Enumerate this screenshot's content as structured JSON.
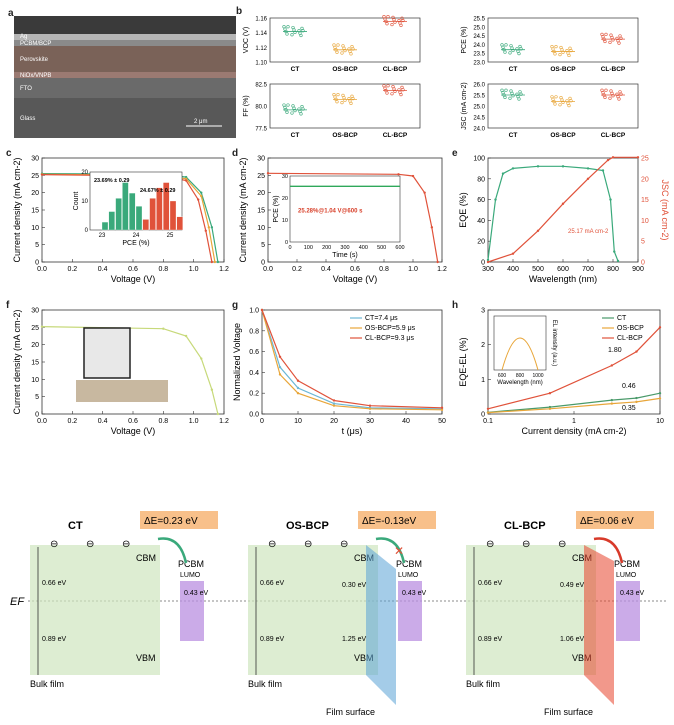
{
  "figure_letters": [
    "a",
    "b",
    "c",
    "d",
    "e",
    "f",
    "g",
    "h"
  ],
  "sem": {
    "layers": [
      "Ag",
      "PCBM/BCP",
      "Perovskite",
      "NiOx/VNPB",
      "FTO",
      "Glass"
    ],
    "scale_bar": "2 μm"
  },
  "panel_b": {
    "categories": [
      "CT",
      "OS-BCP",
      "CL-BCP"
    ],
    "voc": {
      "ylabel": "VOC (V)",
      "ticks": [
        "1.16",
        "1.14",
        "1.12",
        "1.10"
      ],
      "ylim": [
        1.1,
        1.165
      ],
      "medians": [
        1.145,
        1.118,
        1.16
      ]
    },
    "pce": {
      "ylabel": "PCE (%)",
      "ticks": [
        "25.5",
        "25.0",
        "24.5",
        "24.0",
        "23.5",
        "23.0"
      ],
      "ylim": [
        23.0,
        25.5
      ],
      "medians": [
        23.7,
        23.6,
        24.3
      ]
    },
    "ff": {
      "ylabel": "FF (%)",
      "ticks": [
        "82.5",
        "80.0",
        "77.5"
      ],
      "ylim": [
        76.5,
        84.5
      ],
      "medians": [
        79.8,
        81.7,
        83.3
      ]
    },
    "jsc": {
      "ylabel": "JSC (mA cm-2)",
      "ticks": [
        "26.0",
        "25.5",
        "25.0",
        "24.5",
        "24.0"
      ],
      "ylim": [
        24.0,
        26.0
      ],
      "medians": [
        25.5,
        25.2,
        25.5
      ]
    }
  },
  "chart_data": [
    {
      "panel": "c",
      "type": "line",
      "xlabel": "Voltage (V)",
      "ylabel": "Current density (mA cm-2)",
      "xlim": [
        0,
        1.2
      ],
      "ylim": [
        0,
        30
      ],
      "xticks": [
        "0.0",
        "0.2",
        "0.4",
        "0.6",
        "0.8",
        "1.0",
        "1.2"
      ],
      "yticks": [
        "0",
        "5",
        "10",
        "15",
        "20",
        "25",
        "30"
      ],
      "series": [
        {
          "values": [
            [
              0,
              25.5
            ],
            [
              0.8,
              25.3
            ],
            [
              0.95,
              24.5
            ],
            [
              1.05,
              20
            ],
            [
              1.12,
              10
            ],
            [
              1.16,
              0
            ]
          ]
        },
        {
          "values": [
            [
              0,
              25.3
            ],
            [
              0.8,
              25
            ],
            [
              0.95,
              24
            ],
            [
              1.05,
              19
            ],
            [
              1.1,
              10
            ],
            [
              1.14,
              0
            ]
          ]
        },
        {
          "values": [
            [
              0,
              25.2
            ],
            [
              0.8,
              24.8
            ],
            [
              0.95,
              23.5
            ],
            [
              1.03,
              18
            ],
            [
              1.08,
              9
            ],
            [
              1.12,
              0
            ]
          ]
        }
      ],
      "inset": {
        "type": "bar",
        "xlabel": "PCE (%)",
        "ylabel": "Count",
        "xticks": [
          "23",
          "24",
          "25"
        ],
        "yticks": [
          "0",
          "10",
          "20"
        ],
        "annotations": [
          "23.69% ± 0.29",
          "24.67% ± 0.29"
        ],
        "series": [
          {
            "x": [
              23.0,
              23.2,
              23.4,
              23.6,
              23.8,
              24.0,
              24.2
            ],
            "values": [
              3,
              7,
              12,
              18,
              14,
              9,
              4
            ]
          },
          {
            "x": [
              24.2,
              24.4,
              24.6,
              24.8,
              25.0,
              25.2
            ],
            "values": [
              4,
              12,
              16,
              18,
              11,
              5
            ]
          }
        ]
      }
    },
    {
      "panel": "d",
      "type": "line",
      "xlabel": "Voltage (V)",
      "ylabel": "Current density (mA cm-2)",
      "xlim": [
        0,
        1.2
      ],
      "ylim": [
        0,
        30
      ],
      "xticks": [
        "0.0",
        "0.2",
        "0.4",
        "0.6",
        "0.8",
        "1.0",
        "1.2"
      ],
      "yticks": [
        "0",
        "5",
        "10",
        "15",
        "20",
        "25",
        "30"
      ],
      "series": [
        {
          "values": [
            [
              0,
              25.6
            ],
            [
              0.9,
              25.3
            ],
            [
              1.0,
              24.8
            ],
            [
              1.08,
              20
            ],
            [
              1.13,
              10
            ],
            [
              1.17,
              0
            ]
          ]
        }
      ],
      "inset": {
        "type": "line",
        "xlabel": "Time (s)",
        "ylabel": "PCE (%)",
        "xticks": [
          "0",
          "100",
          "200",
          "300",
          "400",
          "500",
          "600"
        ],
        "yticks": [
          "0",
          "10",
          "20",
          "30"
        ],
        "annotation": "25.28%@1.04 V@600 s",
        "values": [
          [
            0,
            25.3
          ],
          [
            600,
            25.3
          ]
        ]
      }
    },
    {
      "panel": "e",
      "type": "line",
      "xlabel": "Wavelength (nm)",
      "ylabel": "EQE (%)",
      "ylabel2": "JSC (mA cm-2)",
      "xlim": [
        300,
        900
      ],
      "ylim": [
        0,
        100
      ],
      "ylim2": [
        0,
        25
      ],
      "xticks": [
        "300",
        "400",
        "500",
        "600",
        "700",
        "800",
        "900"
      ],
      "yticks": [
        "0",
        "20",
        "40",
        "60",
        "80",
        "100"
      ],
      "yticks2": [
        "0",
        "5",
        "10",
        "15",
        "20",
        "25"
      ],
      "annotation": "25.17 mA cm-2",
      "series": [
        {
          "values": [
            [
              300,
              2
            ],
            [
              330,
              60
            ],
            [
              360,
              85
            ],
            [
              400,
              90
            ],
            [
              500,
              92
            ],
            [
              600,
              92
            ],
            [
              700,
              90
            ],
            [
              760,
              88
            ],
            [
              790,
              60
            ],
            [
              805,
              10
            ],
            [
              820,
              1
            ]
          ]
        },
        {
          "values": [
            [
              300,
              0
            ],
            [
              400,
              2
            ],
            [
              500,
              7.5
            ],
            [
              600,
              14
            ],
            [
              700,
              20
            ],
            [
              780,
              24.5
            ],
            [
              800,
              25.17
            ],
            [
              900,
              25.17
            ]
          ]
        }
      ]
    },
    {
      "panel": "f",
      "type": "line",
      "xlabel": "Voltage (V)",
      "ylabel": "Current density (mA cm-2)",
      "xlim": [
        0,
        1.2
      ],
      "ylim": [
        0,
        30
      ],
      "xticks": [
        "0.0",
        "0.2",
        "0.4",
        "0.6",
        "0.8",
        "1.0",
        "1.2"
      ],
      "yticks": [
        "0",
        "5",
        "10",
        "15",
        "20",
        "25",
        "30"
      ],
      "series": [
        {
          "values": [
            [
              0,
              25.2
            ],
            [
              0.8,
              24.6
            ],
            [
              0.95,
              22.5
            ],
            [
              1.05,
              16
            ],
            [
              1.12,
              7
            ],
            [
              1.16,
              0
            ]
          ]
        }
      ]
    },
    {
      "panel": "g",
      "type": "line",
      "xlabel": "t (μs)",
      "ylabel": "Normalized Voltage",
      "xlim": [
        0,
        50
      ],
      "ylim": [
        0,
        1
      ],
      "xticks": [
        "0",
        "10",
        "20",
        "30",
        "40",
        "50"
      ],
      "yticks": [
        "0.0",
        "0.2",
        "0.4",
        "0.6",
        "0.8",
        "1.0"
      ],
      "series": [
        {
          "name": "CT=7.4 μs",
          "values": [
            [
              0,
              1
            ],
            [
              5,
              0.45
            ],
            [
              10,
              0.25
            ],
            [
              20,
              0.1
            ],
            [
              30,
              0.06
            ],
            [
              50,
              0.05
            ]
          ]
        },
        {
          "name": "OS-BCP=5.9 μs",
          "values": [
            [
              0,
              1
            ],
            [
              5,
              0.38
            ],
            [
              10,
              0.2
            ],
            [
              20,
              0.08
            ],
            [
              30,
              0.05
            ],
            [
              50,
              0.04
            ]
          ]
        },
        {
          "name": "CL-BCP=9.3 μs",
          "values": [
            [
              0,
              1
            ],
            [
              5,
              0.55
            ],
            [
              10,
              0.32
            ],
            [
              20,
              0.13
            ],
            [
              30,
              0.08
            ],
            [
              50,
              0.06
            ]
          ]
        }
      ]
    },
    {
      "panel": "h",
      "type": "line",
      "xlabel": "Current density (mA cm-2)",
      "ylabel": "EQE-EL (%)",
      "xscale": "log",
      "xlim": [
        0.1,
        60
      ],
      "ylim": [
        0,
        3
      ],
      "xticks": [
        "0.1",
        "1",
        "10"
      ],
      "yticks": [
        "0",
        "1",
        "2",
        "3"
      ],
      "series": [
        {
          "name": "CT",
          "values": [
            [
              0.1,
              0.05
            ],
            [
              1,
              0.2
            ],
            [
              10,
              0.4
            ],
            [
              25,
              0.46
            ],
            [
              60,
              0.6
            ]
          ]
        },
        {
          "name": "OS-BCP",
          "values": [
            [
              0.1,
              0.04
            ],
            [
              1,
              0.15
            ],
            [
              10,
              0.3
            ],
            [
              25,
              0.35
            ],
            [
              60,
              0.45
            ]
          ]
        },
        {
          "name": "CL-BCP",
          "values": [
            [
              0.1,
              0.15
            ],
            [
              1,
              0.6
            ],
            [
              10,
              1.4
            ],
            [
              25,
              1.8
            ],
            [
              60,
              2.5
            ]
          ]
        }
      ],
      "annotations": [
        "1.80",
        "0.46",
        "0.35"
      ],
      "inset": {
        "xlabel": "Wavelength (nm)",
        "ylabel": "EL intensity (a.u.)",
        "xticks": [
          "600",
          "800",
          "1000"
        ]
      }
    }
  ],
  "band": {
    "panels": [
      {
        "title": "CT",
        "de": "ΔE=0.23 eV",
        "cbm": "CBM",
        "vbm": "VBM",
        "top": "0.66 eV",
        "bottom": "0.89 eV",
        "pcbm": "PCBM",
        "lumo": "LUMO",
        "gap": "0.43 eV",
        "bulk": "Bulk film"
      },
      {
        "title": "OS-BCP",
        "de": "ΔE=-0.13eV",
        "cbm": "CBM",
        "vbm": "VBM",
        "top": "0.66 eV",
        "bottom": "0.89 eV",
        "surface_top": "0.30 eV",
        "surface_bottom": "1.25 eV",
        "pcbm": "PCBM",
        "lumo": "LUMO",
        "gap": "0.43 eV",
        "bulk": "Bulk  film",
        "surface": "Film surface"
      },
      {
        "title": "CL-BCP",
        "de": "ΔE=0.06 eV",
        "cbm": "CBM",
        "vbm": "VBM",
        "top": "0.66 eV",
        "bottom": "0.89 eV",
        "surface_top": "0.49 eV",
        "surface_bottom": "1.06 eV",
        "pcbm": "PCBM",
        "lumo": "LUMO",
        "gap": "0.43 eV",
        "bulk": "Bulk  film",
        "surface": "Film surface"
      }
    ],
    "ef": "EF",
    "colors": {
      "bulk": "#cfe6bf",
      "pcbm": "#b98fe0",
      "os_surface": "#5aa3d6",
      "cl_surface": "#e8442c",
      "de_box": "#f8c08a"
    }
  }
}
